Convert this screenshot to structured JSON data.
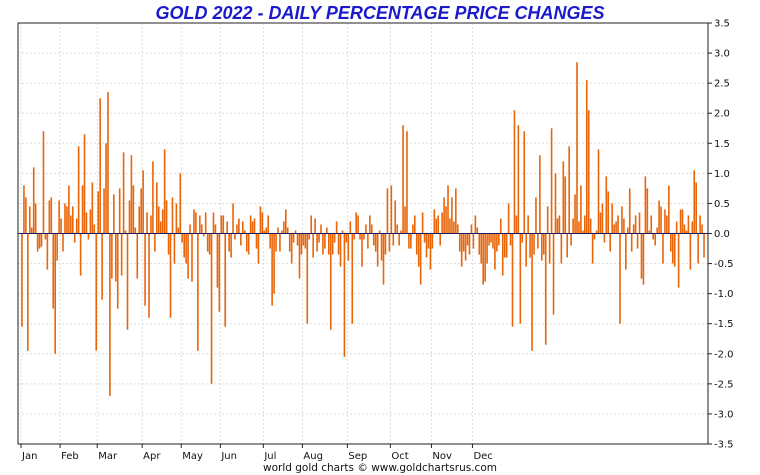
{
  "chart_data": {
    "type": "bar",
    "title": "GOLD 2022 - DAILY PERCENTAGE PRICE CHANGES",
    "xlabel": "",
    "ylabel": "",
    "ylim": [
      -3.5,
      3.5
    ],
    "grid": true,
    "y_ticks": [
      "3.5",
      "3.0",
      "2.5",
      "2.0",
      "1.5",
      "1.0",
      "0.5",
      "0.0",
      "-0.5",
      "-1.0",
      "-1.5",
      "-2.0",
      "-2.5",
      "-3.0",
      "-3.5"
    ],
    "month_labels": [
      "Jan",
      "Feb",
      "Mar",
      "Apr",
      "May",
      "Jun",
      "Jul",
      "Aug",
      "Sep",
      "Oct",
      "Nov",
      "Dec"
    ],
    "month_start_index": [
      0,
      20,
      39,
      62,
      82,
      102,
      124,
      144,
      167,
      189,
      210,
      231
    ],
    "bar_color": "#e8650a",
    "values": [
      -1.55,
      0.8,
      0.6,
      -1.95,
      0.45,
      0.1,
      1.1,
      0.5,
      -0.3,
      -0.25,
      -0.22,
      1.7,
      -0.1,
      -0.6,
      0.55,
      0.6,
      -1.25,
      -2.0,
      -0.45,
      0.55,
      0.25,
      -0.3,
      0.5,
      0.45,
      0.8,
      0.3,
      0.45,
      -0.15,
      0.25,
      1.45,
      -0.7,
      0.8,
      1.65,
      0.35,
      -0.1,
      0.4,
      0.85,
      0.15,
      -1.95,
      0.7,
      2.25,
      -1.1,
      0.75,
      1.5,
      2.35,
      -2.7,
      -0.75,
      0.65,
      -0.8,
      -1.25,
      0.75,
      -0.7,
      1.35,
      0.05,
      -1.6,
      0.55,
      1.3,
      0.8,
      0.1,
      -0.75,
      0.45,
      0.75,
      1.05,
      -1.2,
      0.35,
      -1.4,
      0.3,
      1.2,
      -0.3,
      0.85,
      0.45,
      0.2,
      0.4,
      1.4,
      0.55,
      -0.35,
      -1.4,
      0.6,
      -0.5,
      0.5,
      0.1,
      1.0,
      -0.15,
      -0.4,
      -0.5,
      -0.75,
      0.15,
      -0.8,
      0.4,
      0.35,
      -1.95,
      0.3,
      0.15,
      -0.05,
      0.35,
      -0.3,
      -0.35,
      -2.5,
      0.35,
      0.15,
      -0.9,
      -1.3,
      0.3,
      0.3,
      -1.55,
      0.2,
      -0.3,
      -0.4,
      0.5,
      -0.1,
      0.15,
      0.25,
      -0.2,
      0.2,
      0.05,
      -0.3,
      -0.35,
      0.3,
      0.2,
      0.25,
      -0.25,
      -0.5,
      0.45,
      0.35,
      0.05,
      0.1,
      0.3,
      -0.25,
      -1.2,
      -1.0,
      -0.3,
      0.1,
      -0.3,
      0.05,
      0.2,
      0.4,
      0.1,
      -0.3,
      -0.5,
      -0.15,
      0.05,
      -0.2,
      -0.75,
      -0.35,
      -0.2,
      -0.25,
      -1.5,
      -0.1,
      0.3,
      -0.4,
      0.25,
      -0.3,
      -0.15,
      0.15,
      -0.35,
      -0.25,
      0.1,
      -0.35,
      -1.6,
      -0.35,
      -0.15,
      0.2,
      -0.35,
      -0.55,
      0.05,
      -2.05,
      -0.15,
      -0.45,
      0.2,
      -1.5,
      -0.1,
      0.35,
      0.3,
      -0.1,
      -0.55,
      -0.1,
      0.15,
      -0.25,
      0.3,
      0.15,
      -0.2,
      -0.3,
      -0.55,
      0.05,
      -0.45,
      -0.85,
      -0.35,
      0.75,
      -0.3,
      0.8,
      -0.2,
      0.55,
      0.15,
      -0.2,
      0.05,
      1.8,
      0.45,
      1.7,
      -0.25,
      -0.25,
      0.15,
      0.3,
      -0.35,
      -0.55,
      -0.85,
      0.35,
      -0.15,
      -0.4,
      -0.25,
      -0.6,
      -0.25,
      0.4,
      0.25,
      0.3,
      -0.2,
      0.35,
      0.6,
      0.45,
      0.8,
      0.25,
      0.6,
      0.2,
      0.75,
      0.15,
      -0.3,
      -0.55,
      -0.3,
      -0.45,
      -0.2,
      -0.35,
      0.15,
      -0.25,
      0.3,
      0.1,
      -0.35,
      -0.5,
      -0.85,
      -0.8,
      -0.5,
      -0.2,
      -0.15,
      -0.25,
      -0.6,
      -0.3,
      -0.2,
      0.25,
      -0.7,
      -0.4,
      -0.4,
      0.5,
      -0.2,
      -1.55,
      2.05,
      0.3,
      1.8,
      -1.5,
      -0.15,
      1.7,
      -0.55,
      0.3,
      -0.4,
      -1.95,
      -0.35,
      0.6,
      -0.25,
      1.3,
      -0.45,
      -0.35,
      -1.85,
      0.45,
      -0.5,
      1.75,
      -1.35,
      1.0,
      0.25,
      0.3,
      -0.5,
      1.2,
      0.95,
      -0.4,
      1.45,
      -0.2,
      0.25,
      0.65,
      2.85,
      0.2,
      0.8,
      0.05,
      0.3,
      2.55,
      2.05,
      0.25,
      -0.5,
      -0.1,
      0.05,
      1.4,
      0.35,
      0.5,
      -0.15,
      0.95,
      0.7,
      -0.3,
      0.5,
      0.15,
      0.2,
      0.3,
      -1.5,
      0.45,
      0.25,
      -0.6,
      0.1,
      0.75,
      -0.3,
      0.15,
      0.3,
      -0.25,
      0.35,
      -0.75,
      -0.85,
      0.95,
      0.75,
      0.05,
      0.3,
      -0.1,
      -0.2,
      0.1,
      0.55,
      0.45,
      -0.5,
      0.4,
      0.3,
      0.8,
      -0.3,
      -0.5,
      -0.55,
      0.2,
      -0.9,
      0.4,
      0.4,
      0.15,
      0.05,
      0.3,
      -0.6,
      0.2,
      1.05,
      0.85,
      -0.5,
      0.3,
      0.15,
      -0.4
    ]
  },
  "footer": {
    "credit": "world gold charts © www.goldchartsrus.com"
  }
}
